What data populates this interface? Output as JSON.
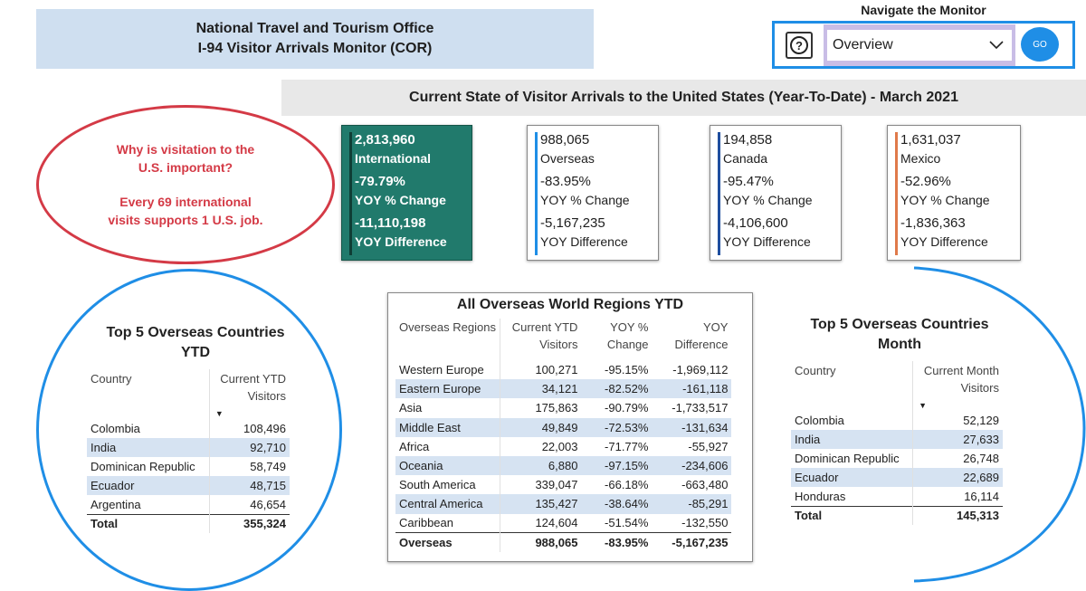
{
  "header": {
    "line1": "National Travel and Tourism Office",
    "line2": "I-94 Visitor Arrivals Monitor (COR)"
  },
  "nav": {
    "label": "Navigate the Monitor",
    "help_icon": "?",
    "selected": "Overview",
    "go_label": "GO"
  },
  "banner": "Current State of Visitor Arrivals to the United States (Year-To-Date) - March 2021",
  "why": {
    "line1": "Why is visitation to the",
    "line2": "U.S. important?",
    "line3": "Every 69 international",
    "line4": "visits supports 1 U.S. job."
  },
  "kpis": {
    "international": {
      "value": "2,813,960",
      "name": "International",
      "yoy_pct": "-79.79%",
      "yoy_pct_label": "YOY % Change",
      "yoy_diff": "-11,110,198",
      "yoy_diff_label": "YOY Difference",
      "accent": "#217a6c"
    },
    "overseas": {
      "value": "988,065",
      "name": "Overseas",
      "yoy_pct": "-83.95%",
      "yoy_pct_label": "YOY % Change",
      "yoy_diff": "-5,167,235",
      "yoy_diff_label": "YOY Difference",
      "accent": "#1f8ee6"
    },
    "canada": {
      "value": "194,858",
      "name": "Canada",
      "yoy_pct": "-95.47%",
      "yoy_pct_label": "YOY % Change",
      "yoy_diff": "-4,106,600",
      "yoy_diff_label": "YOY Difference",
      "accent": "#1f4e9e"
    },
    "mexico": {
      "value": "1,631,037",
      "name": "Mexico",
      "yoy_pct": "-52.96%",
      "yoy_pct_label": "YOY % Change",
      "yoy_diff": "-1,836,363",
      "yoy_diff_label": "YOY Difference",
      "accent": "#e07a4a"
    }
  },
  "top5_ytd": {
    "title_line1": "Top 5 Overseas Countries",
    "title_line2": "YTD",
    "col1": "Country",
    "col2_line1": "Current YTD",
    "col2_line2": "Visitors",
    "rows": [
      {
        "country": "Colombia",
        "visitors": "108,496"
      },
      {
        "country": "India",
        "visitors": "92,710"
      },
      {
        "country": "Dominican Republic",
        "visitors": "58,749"
      },
      {
        "country": "Ecuador",
        "visitors": "48,715"
      },
      {
        "country": "Argentina",
        "visitors": "46,654"
      }
    ],
    "total_label": "Total",
    "total_value": "355,324"
  },
  "regions": {
    "title": "All Overseas World Regions YTD",
    "headers": {
      "c1": "Overseas Regions",
      "c2a": "Current YTD",
      "c2b": "Visitors",
      "c3a": "YOY %",
      "c3b": "Change",
      "c4a": "YOY",
      "c4b": "Difference"
    },
    "rows": [
      {
        "region": "Western Europe",
        "visitors": "100,271",
        "pct": "-95.15%",
        "diff": "-1,969,112"
      },
      {
        "region": "Eastern Europe",
        "visitors": "34,121",
        "pct": "-82.52%",
        "diff": "-161,118"
      },
      {
        "region": "Asia",
        "visitors": "175,863",
        "pct": "-90.79%",
        "diff": "-1,733,517"
      },
      {
        "region": "Middle East",
        "visitors": "49,849",
        "pct": "-72.53%",
        "diff": "-131,634"
      },
      {
        "region": "Africa",
        "visitors": "22,003",
        "pct": "-71.77%",
        "diff": "-55,927"
      },
      {
        "region": "Oceania",
        "visitors": "6,880",
        "pct": "-97.15%",
        "diff": "-234,606"
      },
      {
        "region": "South America",
        "visitors": "339,047",
        "pct": "-66.18%",
        "diff": "-663,480"
      },
      {
        "region": "Central America",
        "visitors": "135,427",
        "pct": "-38.64%",
        "diff": "-85,291"
      },
      {
        "region": "Caribbean",
        "visitors": "124,604",
        "pct": "-51.54%",
        "diff": "-132,550"
      }
    ],
    "total": {
      "region": "Overseas",
      "visitors": "988,065",
      "pct": "-83.95%",
      "diff": "-5,167,235"
    }
  },
  "top5_month": {
    "title_line1": "Top 5 Overseas Countries",
    "title_line2": "Month",
    "col1": "Country",
    "col2_line1": "Current Month",
    "col2_line2": "Visitors",
    "rows": [
      {
        "country": "Colombia",
        "visitors": "52,129"
      },
      {
        "country": "India",
        "visitors": "27,633"
      },
      {
        "country": "Dominican Republic",
        "visitors": "26,748"
      },
      {
        "country": "Ecuador",
        "visitors": "22,689"
      },
      {
        "country": "Honduras",
        "visitors": "16,114"
      }
    ],
    "total_label": "Total",
    "total_value": "145,313"
  }
}
